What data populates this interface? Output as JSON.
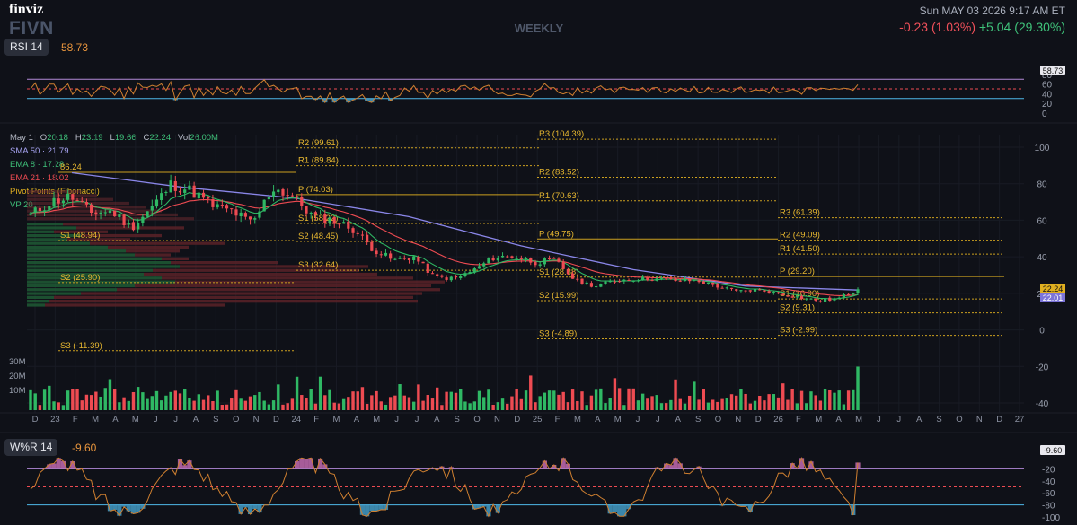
{
  "header": {
    "brand": "finviz",
    "ticker": "FIVN",
    "period": "WEEKLY",
    "datetime": "Sun MAY 03 2026 9:17 AM ET",
    "change_abs": "-0.23 (1.03%)",
    "change_ext": "+5.04 (29.30%)"
  },
  "rsi_panel": {
    "label": "RSI 14",
    "value": "58.73",
    "ticks": [
      "80",
      "60",
      "40",
      "20",
      "0"
    ],
    "badge": "58.73"
  },
  "legend": {
    "date": "May 1",
    "o_label": "O",
    "o": "20.18",
    "h_label": "H",
    "h": "23.19",
    "l_label": "L",
    "l": "19.66",
    "c_label": "C",
    "c": "22.24",
    "vol_label": "Vol",
    "vol": "26.00M",
    "sma50": "SMA 50 · 21.79",
    "ema8": "EMA 8 · 17.28",
    "ema21": "EMA 21 · 18.02",
    "pivot": "Pivot Points (Fibonacci)",
    "vp": "VP 20"
  },
  "wr_panel": {
    "label": "W%R 14",
    "value": "-9.60",
    "badge": "-9.60",
    "ticks": [
      "-20",
      "-40",
      "-60",
      "-80",
      "-100"
    ]
  },
  "price_badges": [
    "22.24",
    "22.01"
  ],
  "colors": {
    "up": "#2fb864",
    "down": "#ee4b52",
    "sma50": "#8a86e8",
    "ema8": "#2fb864",
    "ema21": "#ee4b52",
    "pivot": "#e0b020",
    "rsi": "#d08030",
    "oversold": "#4fb8e8",
    "overbought": "#e87cd0",
    "bg": "#0f1118"
  },
  "chart_data": [
    {
      "type": "candlestick",
      "title": "FIVN",
      "timeframe": "weekly",
      "y_ticks": [
        100,
        80,
        60,
        40,
        20,
        0,
        -20,
        -40
      ],
      "x_ticks": [
        "D",
        "23",
        "F",
        "M",
        "A",
        "M",
        "J",
        "J",
        "A",
        "S",
        "O",
        "N",
        "D",
        "24",
        "F",
        "M",
        "A",
        "M",
        "J",
        "J",
        "A",
        "S",
        "O",
        "N",
        "D",
        "25",
        "F",
        "M",
        "A",
        "M",
        "J",
        "J",
        "A",
        "S",
        "O",
        "N",
        "D",
        "26",
        "F",
        "M",
        "A",
        "M",
        "J",
        "J",
        "A",
        "S",
        "O",
        "N",
        "D",
        "27"
      ],
      "last_candle": {
        "open": 20.18,
        "high": 23.19,
        "low": 19.66,
        "close": 22.24,
        "volume": "26.00M"
      },
      "close_path": [
        {
          "x": "2022-12",
          "y": 63
        },
        {
          "x": "2023-01",
          "y": 70
        },
        {
          "x": "2023-02",
          "y": 73
        },
        {
          "x": "2023-03",
          "y": 64
        },
        {
          "x": "2023-04",
          "y": 65
        },
        {
          "x": "2023-05",
          "y": 56
        },
        {
          "x": "2023-06",
          "y": 67
        },
        {
          "x": "2023-07",
          "y": 80
        },
        {
          "x": "2023-08",
          "y": 76
        },
        {
          "x": "2023-09",
          "y": 68
        },
        {
          "x": "2023-10",
          "y": 65
        },
        {
          "x": "2023-11",
          "y": 58
        },
        {
          "x": "2023-12",
          "y": 78
        },
        {
          "x": "2024-01",
          "y": 73
        },
        {
          "x": "2024-02",
          "y": 62
        },
        {
          "x": "2024-03",
          "y": 60
        },
        {
          "x": "2024-04",
          "y": 55
        },
        {
          "x": "2024-05",
          "y": 44
        },
        {
          "x": "2024-06",
          "y": 38
        },
        {
          "x": "2024-07",
          "y": 40
        },
        {
          "x": "2024-08",
          "y": 29
        },
        {
          "x": "2024-09",
          "y": 28
        },
        {
          "x": "2024-10",
          "y": 33
        },
        {
          "x": "2024-11",
          "y": 40
        },
        {
          "x": "2024-12",
          "y": 40
        },
        {
          "x": "2025-01",
          "y": 37
        },
        {
          "x": "2025-02",
          "y": 38
        },
        {
          "x": "2025-03",
          "y": 27
        },
        {
          "x": "2025-04",
          "y": 24
        },
        {
          "x": "2025-05",
          "y": 27
        },
        {
          "x": "2025-06",
          "y": 28
        },
        {
          "x": "2025-07",
          "y": 28
        },
        {
          "x": "2025-08",
          "y": 27
        },
        {
          "x": "2025-09",
          "y": 27
        },
        {
          "x": "2025-10",
          "y": 24
        },
        {
          "x": "2025-11",
          "y": 21
        },
        {
          "x": "2025-12",
          "y": 22
        },
        {
          "x": "2026-01",
          "y": 20
        },
        {
          "x": "2026-02",
          "y": 18
        },
        {
          "x": "2026-03",
          "y": 16
        },
        {
          "x": "2026-04",
          "y": 17
        },
        {
          "x": "2026-05",
          "y": 22.24
        }
      ],
      "sma50_path": [
        {
          "x": "2023-01",
          "y": 86
        },
        {
          "x": "2023-06",
          "y": 78
        },
        {
          "x": "2023-12",
          "y": 72
        },
        {
          "x": "2024-06",
          "y": 62
        },
        {
          "x": "2024-12",
          "y": 46
        },
        {
          "x": "2025-06",
          "y": 33
        },
        {
          "x": "2025-12",
          "y": 24
        },
        {
          "x": "2026-05",
          "y": 21.79
        }
      ],
      "pivot_levels": [
        {
          "period": "2023",
          "levels": [
            {
              "name": "P",
              "label": "86.24",
              "value": 86.24
            },
            {
              "name": "S1",
              "label": "S1 (48.94)",
              "value": 48.94
            },
            {
              "name": "S2",
              "label": "S2 (25.90)",
              "value": 25.9
            },
            {
              "name": "S3",
              "label": "S3 (-11.39)",
              "value": -11.39
            }
          ]
        },
        {
          "period": "2024",
          "levels": [
            {
              "name": "R2",
              "label": "R2 (99.61)",
              "value": 99.61
            },
            {
              "name": "R1",
              "label": "R1 (89.84)",
              "value": 89.84
            },
            {
              "name": "P",
              "label": "P (74.03)",
              "value": 74.03
            },
            {
              "name": "S1",
              "label": "S1 (58.22)",
              "value": 58.22
            },
            {
              "name": "S2",
              "label": "S2 (48.45)",
              "value": 48.45
            },
            {
              "name": "S3",
              "label": "S3 (32.64)",
              "value": 32.64
            }
          ]
        },
        {
          "period": "2025",
          "levels": [
            {
              "name": "R3",
              "label": "R3 (104.39)",
              "value": 104.39
            },
            {
              "name": "R2",
              "label": "R2 (83.52)",
              "value": 83.52
            },
            {
              "name": "R1",
              "label": "R1 (70.63)",
              "value": 70.63
            },
            {
              "name": "P",
              "label": "P (49.75)",
              "value": 49.75
            },
            {
              "name": "S1",
              "label": "S1 (28.88)",
              "value": 28.88
            },
            {
              "name": "S2",
              "label": "S2 (15.99)",
              "value": 15.99
            },
            {
              "name": "S3",
              "label": "S3 (-4.89)",
              "value": -4.89
            }
          ]
        },
        {
          "period": "2026",
          "levels": [
            {
              "name": "R3",
              "label": "R3 (61.39)",
              "value": 61.39
            },
            {
              "name": "R2",
              "label": "R2 (49.09)",
              "value": 49.09
            },
            {
              "name": "R1",
              "label": "R1 (41.50)",
              "value": 41.5
            },
            {
              "name": "P",
              "label": "P (29.20)",
              "value": 29.2
            },
            {
              "name": "S1",
              "label": "S1 (16.90)",
              "value": 16.9
            },
            {
              "name": "S2",
              "label": "S2 (9.31)",
              "value": 9.31
            },
            {
              "name": "S3",
              "label": "S3 (-2.99)",
              "value": -2.99
            }
          ]
        }
      ]
    },
    {
      "type": "bar",
      "title": "Volume",
      "y_ticks": [
        "30M",
        "20M",
        "10M"
      ],
      "last_value": "26.00M"
    },
    {
      "type": "line",
      "title": "RSI 14",
      "ylim": [
        0,
        100
      ],
      "levels": [
        70,
        50,
        30
      ],
      "last_value": 58.73
    },
    {
      "type": "line",
      "title": "W%R 14",
      "ylim": [
        -100,
        0
      ],
      "levels": [
        -20,
        -50,
        -80
      ],
      "last_value": -9.6
    }
  ]
}
